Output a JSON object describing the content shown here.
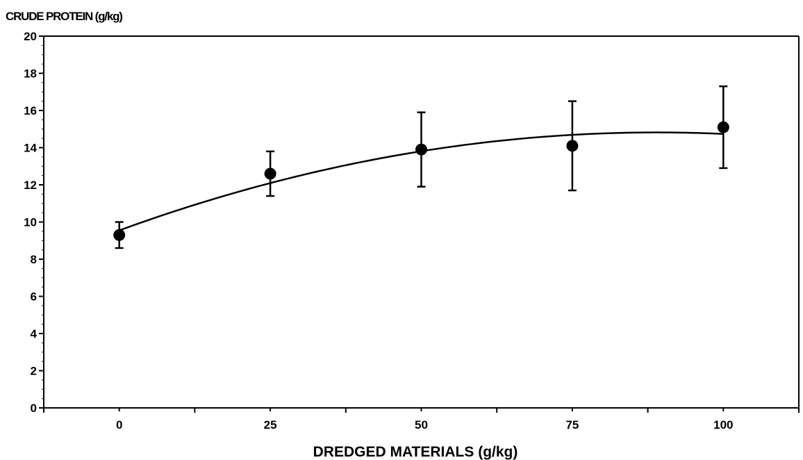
{
  "chart_data": {
    "type": "scatter",
    "ylabel": "CRUDE PROTEIN (g/kg)",
    "xlabel": "DREDGED MATERIALS (g/kg)",
    "x_ticks": [
      "0",
      "25",
      "50",
      "75",
      "100"
    ],
    "y_ticks": [
      "0",
      "2",
      "4",
      "6",
      "8",
      "10",
      "12",
      "14",
      "16",
      "18",
      "20"
    ],
    "xlim": [
      -12.5,
      112.5
    ],
    "ylim": [
      0,
      20
    ],
    "grid": false,
    "series": [
      {
        "x": [
          0,
          25,
          50,
          75,
          100
        ],
        "y": [
          9.3,
          12.6,
          13.9,
          14.1,
          15.1
        ],
        "error_low": [
          8.6,
          11.4,
          11.9,
          11.7,
          12.9
        ],
        "error_high": [
          10.0,
          13.8,
          15.9,
          16.5,
          17.3
        ]
      }
    ],
    "trendline": {
      "type": "quadratic",
      "coefficients": [
        9.55,
        0.1184,
        -0.000665
      ]
    }
  }
}
